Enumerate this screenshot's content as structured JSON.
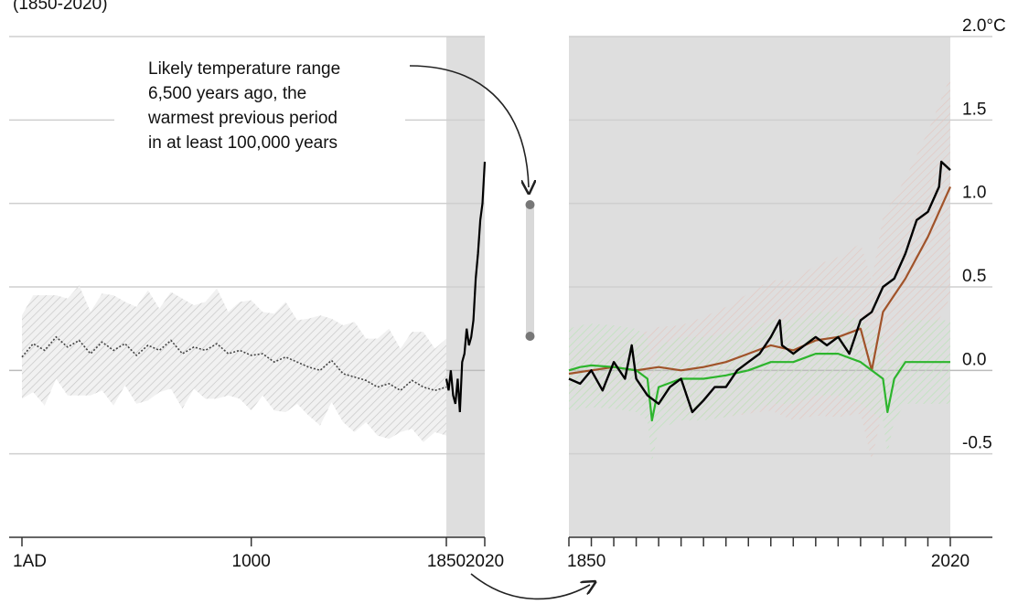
{
  "header": {
    "left_cut_text": "(1850-2020)"
  },
  "annotation": {
    "lines": [
      "Likely temperature range",
      "6,500 years ago, the",
      "warmest previous period",
      "in at least 100,000 years"
    ]
  },
  "chart_data": [
    {
      "type": "line",
      "panel": "left",
      "x_ticks": [
        "1AD",
        "1000",
        "1850",
        "2020"
      ],
      "xlim": [
        1,
        2020
      ],
      "ylim": [
        -1.0,
        2.0
      ],
      "shaded_period": [
        1850,
        2020
      ],
      "grid": true,
      "series": [
        {
          "style": "dotted",
          "color": "#444444",
          "x": [
            1,
            50,
            100,
            150,
            200,
            250,
            300,
            350,
            400,
            450,
            500,
            550,
            600,
            650,
            700,
            750,
            800,
            850,
            900,
            950,
            1000,
            1050,
            1100,
            1150,
            1200,
            1250,
            1300,
            1350,
            1400,
            1450,
            1500,
            1550,
            1600,
            1650,
            1700,
            1750,
            1800,
            1850
          ],
          "values": [
            0.08,
            0.16,
            0.12,
            0.2,
            0.14,
            0.18,
            0.1,
            0.17,
            0.12,
            0.16,
            0.09,
            0.15,
            0.12,
            0.18,
            0.1,
            0.14,
            0.12,
            0.16,
            0.1,
            0.12,
            0.09,
            0.1,
            0.05,
            0.08,
            0.05,
            0.02,
            0.0,
            0.06,
            -0.02,
            -0.04,
            -0.06,
            -0.1,
            -0.08,
            -0.12,
            -0.06,
            -0.1,
            -0.12,
            -0.1
          ]
        },
        {
          "style": "solid",
          "color": "#000000",
          "x": [
            1850,
            1860,
            1870,
            1880,
            1890,
            1900,
            1910,
            1920,
            1930,
            1940,
            1950,
            1960,
            1970,
            1980,
            1990,
            2000,
            2010,
            2020
          ],
          "values": [
            -0.05,
            -0.12,
            0.0,
            -0.15,
            -0.2,
            -0.05,
            -0.25,
            0.05,
            0.1,
            0.25,
            0.15,
            0.2,
            0.3,
            0.55,
            0.7,
            0.9,
            1.0,
            1.25
          ]
        }
      ]
    },
    {
      "type": "range",
      "panel": "range-bar",
      "y_range": [
        0.2,
        1.0
      ]
    },
    {
      "type": "line",
      "panel": "right",
      "x_ticks": [
        "1850",
        "2020"
      ],
      "xlim": [
        1850,
        2020
      ],
      "ylim": [
        -1.0,
        2.0
      ],
      "y_ticks": [
        "2.0°C",
        "1.5",
        "1.0",
        "0.5",
        "0.0",
        "-0.5"
      ],
      "y_tick_values": [
        2.0,
        1.5,
        1.0,
        0.5,
        0.0,
        -0.5
      ],
      "grid": true,
      "series": [
        {
          "color": "#000000",
          "x": [
            1850,
            1855,
            1860,
            1865,
            1870,
            1875,
            1878,
            1880,
            1885,
            1890,
            1895,
            1900,
            1905,
            1910,
            1915,
            1920,
            1925,
            1930,
            1935,
            1940,
            1944,
            1945,
            1950,
            1955,
            1960,
            1965,
            1970,
            1975,
            1980,
            1985,
            1990,
            1995,
            2000,
            2005,
            2010,
            2015,
            2016,
            2020
          ],
          "values": [
            -0.05,
            -0.08,
            0.0,
            -0.12,
            0.05,
            -0.05,
            0.15,
            -0.05,
            -0.15,
            -0.2,
            -0.1,
            -0.05,
            -0.25,
            -0.18,
            -0.1,
            -0.1,
            0.0,
            0.05,
            0.1,
            0.2,
            0.3,
            0.15,
            0.1,
            0.15,
            0.2,
            0.15,
            0.2,
            0.1,
            0.3,
            0.35,
            0.5,
            0.55,
            0.7,
            0.9,
            0.95,
            1.1,
            1.25,
            1.2
          ]
        },
        {
          "color": "#a0532a",
          "x": [
            1850,
            1860,
            1870,
            1880,
            1890,
            1900,
            1910,
            1920,
            1930,
            1940,
            1950,
            1960,
            1970,
            1980,
            1985,
            1990,
            2000,
            2010,
            2020
          ],
          "values": [
            -0.02,
            0.0,
            0.02,
            0.0,
            0.02,
            0.0,
            0.02,
            0.05,
            0.1,
            0.15,
            0.12,
            0.18,
            0.2,
            0.25,
            0.0,
            0.35,
            0.55,
            0.8,
            1.1
          ]
        },
        {
          "color": "#2db52d",
          "x": [
            1850,
            1855,
            1860,
            1870,
            1880,
            1885,
            1887,
            1890,
            1900,
            1910,
            1920,
            1930,
            1940,
            1950,
            1960,
            1970,
            1980,
            1990,
            1992,
            1995,
            2000,
            2010,
            2020
          ],
          "values": [
            0.0,
            0.02,
            0.03,
            0.02,
            0.0,
            -0.05,
            -0.3,
            -0.1,
            -0.05,
            -0.05,
            -0.03,
            0.0,
            0.05,
            0.05,
            0.1,
            0.1,
            0.05,
            -0.05,
            -0.25,
            -0.05,
            0.05,
            0.05,
            0.05
          ]
        }
      ]
    }
  ]
}
